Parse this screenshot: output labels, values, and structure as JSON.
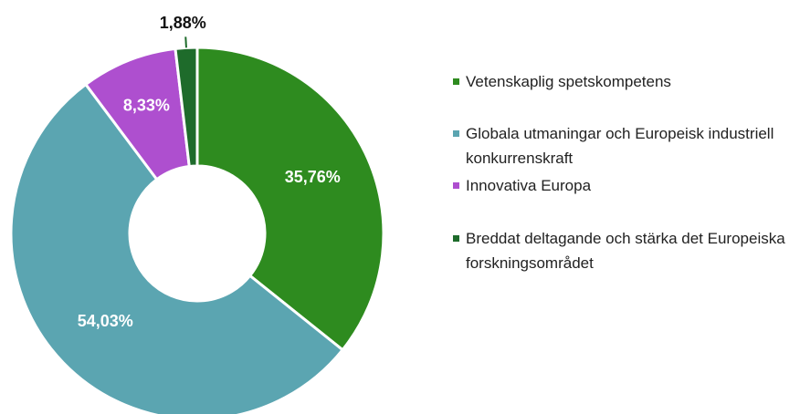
{
  "chart_data": {
    "type": "donut",
    "categories": [
      "Vetenskaplig spetskompetens",
      "Globala utmaningar och Europeisk industriell konkurrenskraft",
      "Innovativa Europa",
      "Breddat deltagande och stärka det Europeiska forskningsområdet"
    ],
    "values": [
      35.76,
      54.03,
      8.33,
      1.88
    ],
    "value_labels": [
      "35,76%",
      "54,03%",
      "8,33%",
      "1,88%"
    ],
    "colors": [
      "#2e8b1f",
      "#5ba5b1",
      "#ae4fcf",
      "#1e6b2b"
    ],
    "legend": "right"
  }
}
